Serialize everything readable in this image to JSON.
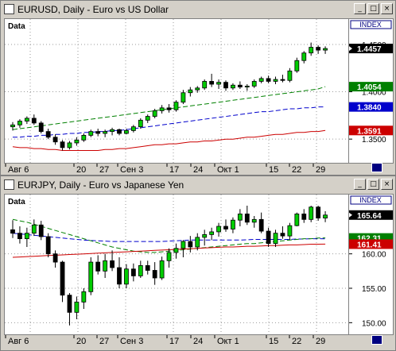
{
  "windows": [
    {
      "title": "EURUSD, Daily - Euro vs US Dollar",
      "buttons": [
        "_",
        "□",
        "×"
      ],
      "index_label": "INDEX",
      "data_label": "Data",
      "current_price": "1.4457",
      "indicator_values": [
        {
          "text": "1.4054",
          "color": "#008000"
        },
        {
          "text": "1.3840",
          "color": "#0000cc"
        },
        {
          "text": "1.3591",
          "color": "#cc0000"
        }
      ],
      "price_ticks": [
        "1.4500",
        "1.4000",
        "1.3500"
      ],
      "date_labels": [
        "Авг 6",
        "20",
        "27",
        "Сен 3",
        "17",
        "24",
        "Окт 1",
        "15",
        "22",
        "29"
      ]
    },
    {
      "title": "EURJPY, Daily - Euro vs Japanese Yen",
      "buttons": [
        "_",
        "□",
        "×"
      ],
      "index_label": "INDEX",
      "data_label": "Data",
      "current_price": "165.64",
      "indicator_values": [
        {
          "text": "162.18",
          "color": "#0000cc"
        },
        {
          "text": "162.31",
          "color": "#008000"
        },
        {
          "text": "161.41",
          "color": "#cc0000"
        }
      ],
      "price_ticks": [
        "160.00",
        "155.00",
        "150.00"
      ],
      "date_labels": [
        "Авг 6",
        "20",
        "27",
        "Сен 3",
        "17",
        "24",
        "Окт 1",
        "15",
        "22",
        "29"
      ]
    }
  ],
  "chart_data": [
    {
      "type": "candlestick",
      "title": "EURUSD, Daily - Euro vs US Dollar",
      "ylim": [
        1.33,
        1.455
      ],
      "series": [
        {
          "name": "price",
          "ohlc": [
            [
              1.363,
              1.368,
              1.359,
              1.365
            ],
            [
              1.365,
              1.371,
              1.362,
              1.369
            ],
            [
              1.369,
              1.374,
              1.366,
              1.372
            ],
            [
              1.372,
              1.376,
              1.365,
              1.367
            ],
            [
              1.367,
              1.369,
              1.356,
              1.358
            ],
            [
              1.358,
              1.361,
              1.35,
              1.352
            ],
            [
              1.352,
              1.355,
              1.344,
              1.347
            ],
            [
              1.347,
              1.349,
              1.338,
              1.341
            ],
            [
              1.341,
              1.348,
              1.339,
              1.346
            ],
            [
              1.346,
              1.352,
              1.343,
              1.349
            ],
            [
              1.349,
              1.356,
              1.347,
              1.354
            ],
            [
              1.354,
              1.36,
              1.352,
              1.358
            ],
            [
              1.358,
              1.361,
              1.353,
              1.356
            ],
            [
              1.356,
              1.36,
              1.352,
              1.358
            ],
            [
              1.358,
              1.362,
              1.354,
              1.36
            ],
            [
              1.36,
              1.361,
              1.354,
              1.356
            ],
            [
              1.356,
              1.361,
              1.355,
              1.359
            ],
            [
              1.359,
              1.365,
              1.357,
              1.363
            ],
            [
              1.363,
              1.372,
              1.361,
              1.37
            ],
            [
              1.37,
              1.376,
              1.367,
              1.374
            ],
            [
              1.374,
              1.382,
              1.372,
              1.38
            ],
            [
              1.38,
              1.386,
              1.377,
              1.383
            ],
            [
              1.383,
              1.387,
              1.378,
              1.381
            ],
            [
              1.381,
              1.391,
              1.379,
              1.389
            ],
            [
              1.389,
              1.402,
              1.387,
              1.399
            ],
            [
              1.399,
              1.405,
              1.395,
              1.402
            ],
            [
              1.402,
              1.406,
              1.399,
              1.404
            ],
            [
              1.404,
              1.413,
              1.402,
              1.411
            ],
            [
              1.411,
              1.419,
              1.405,
              1.408
            ],
            [
              1.408,
              1.413,
              1.403,
              1.41
            ],
            [
              1.41,
              1.412,
              1.401,
              1.404
            ],
            [
              1.404,
              1.409,
              1.402,
              1.407
            ],
            [
              1.407,
              1.411,
              1.403,
              1.405
            ],
            [
              1.405,
              1.408,
              1.401,
              1.406
            ],
            [
              1.406,
              1.413,
              1.404,
              1.411
            ],
            [
              1.411,
              1.416,
              1.409,
              1.414
            ],
            [
              1.414,
              1.417,
              1.409,
              1.411
            ],
            [
              1.411,
              1.416,
              1.408,
              1.413
            ],
            [
              1.413,
              1.418,
              1.41,
              1.412
            ],
            [
              1.412,
              1.425,
              1.41,
              1.422
            ],
            [
              1.422,
              1.436,
              1.42,
              1.433
            ],
            [
              1.433,
              1.443,
              1.43,
              1.441
            ],
            [
              1.441,
              1.452,
              1.438,
              1.447
            ],
            [
              1.447,
              1.449,
              1.44,
              1.444
            ],
            [
              1.444,
              1.448,
              1.44,
              1.4457
            ]
          ]
        },
        {
          "name": "MA green",
          "values": [
            1.36,
            1.361,
            1.362,
            1.363,
            1.364,
            1.365,
            1.366,
            1.367,
            1.368,
            1.369,
            1.37,
            1.371,
            1.372,
            1.373,
            1.374,
            1.375,
            1.376,
            1.377,
            1.378,
            1.379,
            1.38,
            1.381,
            1.382,
            1.383,
            1.384,
            1.385,
            1.386,
            1.387,
            1.388,
            1.389,
            1.39,
            1.391,
            1.392,
            1.393,
            1.394,
            1.395,
            1.396,
            1.397,
            1.398,
            1.399,
            1.4,
            1.401,
            1.402,
            1.403,
            1.4054
          ]
        },
        {
          "name": "MA blue",
          "values": [
            1.352,
            1.352,
            1.353,
            1.353,
            1.354,
            1.354,
            1.355,
            1.355,
            1.356,
            1.356,
            1.357,
            1.357,
            1.358,
            1.358,
            1.359,
            1.359,
            1.36,
            1.361,
            1.362,
            1.363,
            1.364,
            1.365,
            1.366,
            1.367,
            1.368,
            1.369,
            1.37,
            1.371,
            1.372,
            1.373,
            1.374,
            1.375,
            1.376,
            1.377,
            1.378,
            1.379,
            1.379,
            1.38,
            1.381,
            1.382,
            1.382,
            1.383,
            1.383,
            1.384,
            1.384
          ]
        },
        {
          "name": "MA red",
          "values": [
            1.342,
            1.341,
            1.341,
            1.34,
            1.34,
            1.339,
            1.339,
            1.338,
            1.338,
            1.338,
            1.338,
            1.338,
            1.338,
            1.339,
            1.339,
            1.34,
            1.34,
            1.341,
            1.342,
            1.343,
            1.344,
            1.344,
            1.345,
            1.345,
            1.346,
            1.347,
            1.347,
            1.348,
            1.348,
            1.349,
            1.35,
            1.35,
            1.351,
            1.352,
            1.352,
            1.353,
            1.354,
            1.355,
            1.355,
            1.356,
            1.357,
            1.357,
            1.358,
            1.358,
            1.3591
          ]
        }
      ]
    },
    {
      "type": "candlestick",
      "title": "EURJPY, Daily - Euro vs Japanese Yen",
      "ylim": [
        149,
        167
      ],
      "series": [
        {
          "name": "price",
          "ohlc": [
            [
              163.5,
              164.9,
              162.3,
              163.0
            ],
            [
              163.0,
              164.0,
              161.5,
              162.2
            ],
            [
              162.2,
              163.8,
              161.0,
              163.0
            ],
            [
              163.0,
              165.0,
              162.6,
              164.2
            ],
            [
              164.2,
              164.8,
              162.0,
              162.5
            ],
            [
              162.5,
              163.0,
              159.5,
              160.0
            ],
            [
              160.0,
              160.5,
              158.0,
              158.8
            ],
            [
              158.8,
              159.0,
              153.0,
              154.0
            ],
            [
              154.0,
              154.3,
              149.6,
              151.5
            ],
            [
              151.5,
              153.8,
              150.5,
              153.0
            ],
            [
              153.0,
              155.0,
              152.0,
              154.5
            ],
            [
              154.5,
              159.5,
              154.0,
              158.8
            ],
            [
              158.8,
              159.8,
              157.0,
              157.5
            ],
            [
              157.5,
              160.0,
              156.5,
              159.0
            ],
            [
              159.0,
              160.5,
              157.5,
              158.0
            ],
            [
              158.0,
              159.5,
              155.0,
              155.6
            ],
            [
              155.6,
              158.5,
              155.0,
              157.8
            ],
            [
              157.8,
              158.6,
              156.0,
              156.8
            ],
            [
              156.8,
              159.0,
              156.5,
              158.3
            ],
            [
              158.3,
              159.0,
              157.0,
              157.6
            ],
            [
              157.6,
              158.8,
              155.5,
              156.5
            ],
            [
              156.5,
              159.6,
              156.2,
              159.0
            ],
            [
              159.0,
              160.8,
              158.0,
              160.2
            ],
            [
              160.2,
              161.5,
              159.3,
              160.8
            ],
            [
              160.8,
              162.0,
              159.5,
              161.8
            ],
            [
              161.8,
              162.6,
              160.2,
              161.0
            ],
            [
              161.0,
              163.0,
              160.5,
              162.4
            ],
            [
              162.4,
              163.5,
              161.2,
              162.8
            ],
            [
              162.8,
              163.8,
              162.0,
              163.2
            ],
            [
              163.2,
              164.5,
              162.5,
              164.0
            ],
            [
              164.0,
              165.0,
              163.2,
              163.6
            ],
            [
              163.6,
              165.3,
              163.0,
              164.9
            ],
            [
              164.9,
              166.5,
              164.0,
              165.8
            ],
            [
              165.8,
              167.0,
              164.2,
              164.6
            ],
            [
              164.6,
              165.5,
              163.8,
              165.0
            ],
            [
              165.0,
              166.0,
              163.0,
              163.3
            ],
            [
              163.3,
              163.8,
              161.0,
              161.5
            ],
            [
              161.5,
              163.5,
              161.0,
              163.0
            ],
            [
              163.0,
              164.0,
              162.2,
              162.6
            ],
            [
              162.6,
              164.5,
              162.0,
              164.1
            ],
            [
              164.1,
              166.0,
              164.0,
              165.8
            ],
            [
              165.8,
              166.5,
              164.5,
              165.0
            ],
            [
              165.0,
              167.0,
              164.6,
              166.8
            ],
            [
              166.8,
              167.0,
              164.8,
              165.2
            ],
            [
              165.2,
              166.2,
              164.6,
              165.64
            ]
          ]
        },
        {
          "name": "MA blue",
          "values": [
            163.0,
            162.9,
            162.8,
            162.7,
            162.6,
            162.5,
            162.4,
            162.3,
            162.2,
            162.1,
            162.0,
            161.95,
            161.9,
            161.85,
            161.8,
            161.8,
            161.8,
            161.8,
            161.8,
            161.8,
            161.8,
            161.8,
            161.85,
            161.9,
            161.95,
            162.0,
            162.0,
            162.0,
            162.0,
            162.0,
            162.0,
            162.0,
            162.0,
            162.05,
            162.1,
            162.1,
            162.1,
            162.1,
            162.1,
            162.1,
            162.15,
            162.15,
            162.2,
            162.2,
            162.18
          ]
        },
        {
          "name": "MA green",
          "values": [
            165.0,
            164.8,
            164.6,
            164.3,
            164.0,
            163.7,
            163.4,
            163.1,
            162.8,
            162.5,
            162.2,
            161.9,
            161.6,
            161.3,
            161.0,
            160.8,
            160.6,
            160.4,
            160.3,
            160.2,
            160.2,
            160.3,
            160.4,
            160.5,
            160.6,
            160.7,
            160.8,
            160.9,
            161.0,
            161.1,
            161.2,
            161.3,
            161.4,
            161.5,
            161.5,
            161.6,
            161.7,
            161.8,
            161.9,
            162.0,
            162.1,
            162.2,
            162.2,
            162.3,
            162.31
          ]
        },
        {
          "name": "MA red",
          "values": [
            159.5,
            159.55,
            159.6,
            159.65,
            159.7,
            159.75,
            159.8,
            159.85,
            159.9,
            159.95,
            160.0,
            160.05,
            160.1,
            160.15,
            160.2,
            160.25,
            160.3,
            160.35,
            160.4,
            160.45,
            160.5,
            160.55,
            160.6,
            160.65,
            160.7,
            160.75,
            160.8,
            160.85,
            160.9,
            160.95,
            161.0,
            161.0,
            161.05,
            161.1,
            161.1,
            161.15,
            161.2,
            161.2,
            161.25,
            161.3,
            161.3,
            161.35,
            161.4,
            161.4,
            161.41
          ]
        }
      ]
    }
  ]
}
